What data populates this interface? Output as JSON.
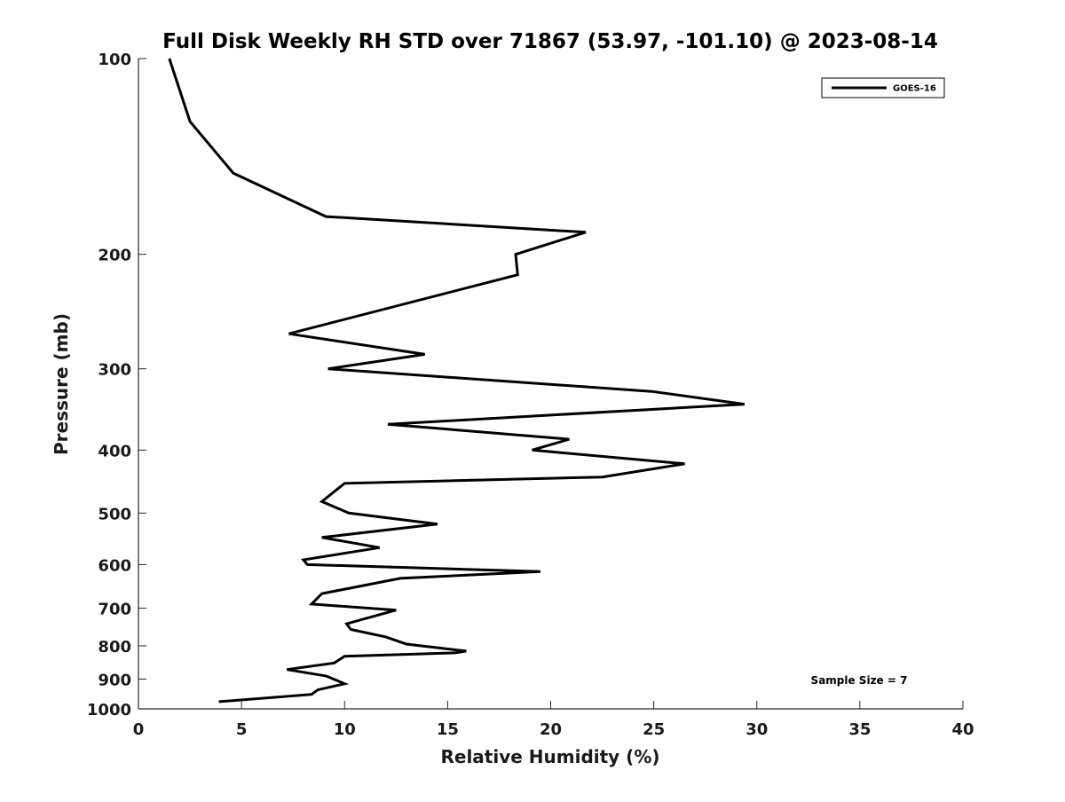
{
  "chart_data": {
    "type": "line",
    "title": "Full Disk Weekly RH STD over 71867 (53.97, -101.10) @ 2023-08-14",
    "xlabel": "Relative Humidity (%)",
    "ylabel": "Pressure (mb)",
    "xlim": [
      0,
      40
    ],
    "ylim": [
      1000,
      100
    ],
    "y_scale": "log",
    "x_ticks": [
      "0",
      "5",
      "10",
      "15",
      "20",
      "25",
      "30",
      "35",
      "40"
    ],
    "y_ticks": [
      "100",
      "200",
      "300",
      "400",
      "500",
      "600",
      "700",
      "800",
      "900",
      "1000"
    ],
    "grid": false,
    "legend_position": "top-right",
    "annotation": "Sample Size = 7",
    "series": [
      {
        "name": "GOES-16",
        "color": "#000000",
        "x": [
          1.5,
          2.5,
          4.6,
          9.1,
          21.7,
          18.3,
          18.4,
          7.3,
          13.9,
          9.2,
          24.9,
          29.4,
          12.1,
          20.9,
          19.1,
          26.5,
          22.5,
          10.0,
          8.9,
          10.2,
          14.5,
          8.9,
          11.7,
          8.0,
          8.2,
          19.5,
          12.7,
          8.9,
          8.4,
          12.5,
          10.1,
          10.3,
          12.0,
          13.0,
          15.9,
          15.4,
          10.0,
          9.5,
          7.2,
          9.1,
          10.0,
          8.7,
          8.4,
          3.9
        ],
        "y": [
          100,
          125,
          150,
          175,
          185,
          200,
          215,
          265,
          285,
          300,
          325,
          340,
          365,
          385,
          400,
          420,
          440,
          450,
          480,
          500,
          520,
          545,
          565,
          590,
          600,
          615,
          630,
          665,
          690,
          705,
          740,
          755,
          775,
          795,
          815,
          820,
          830,
          850,
          870,
          890,
          915,
          935,
          950,
          975
        ]
      }
    ]
  }
}
